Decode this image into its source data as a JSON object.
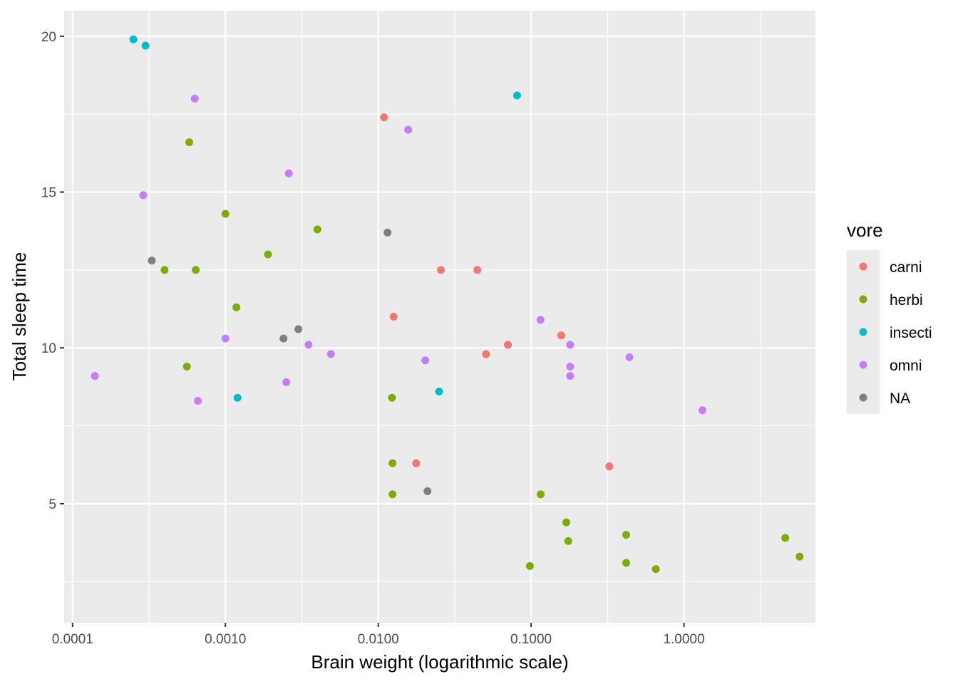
{
  "chart_data": {
    "type": "scatter",
    "title": "",
    "xlabel": "Brain weight (logarithmic scale)",
    "ylabel": "Total sleep time",
    "x_scale": "log10",
    "xlim": [
      8.81e-05,
      7.25
    ],
    "ylim": [
      1.18,
      20.82
    ],
    "x_ticks": [
      0.0001,
      0.001,
      0.01,
      0.1,
      1
    ],
    "x_tick_labels": [
      "0.0001",
      "0.0010",
      "0.0100",
      "0.1000",
      "1.0000"
    ],
    "y_ticks": [
      5,
      10,
      15,
      20
    ],
    "y_tick_labels": [
      "5",
      "10",
      "15",
      "20"
    ],
    "grid": true,
    "legend": {
      "title": "vore",
      "position": "right"
    },
    "series": [
      {
        "name": "carni",
        "color": "#F8766D",
        "points": [
          [
            0.0109,
            17.4
          ],
          [
            0.0257,
            12.5
          ],
          [
            0.0445,
            12.5
          ],
          [
            0.0126,
            11.0
          ],
          [
            0.1575,
            10.4
          ],
          [
            0.0705,
            10.1
          ],
          [
            0.0507,
            9.8
          ],
          [
            0.0177,
            6.3
          ],
          [
            0.325,
            6.2
          ]
        ]
      },
      {
        "name": "herbi",
        "color": "#7CAE00",
        "points": [
          [
            0.00058,
            16.6
          ],
          [
            0.001,
            14.3
          ],
          [
            0.004,
            13.8
          ],
          [
            0.0019,
            13.0
          ],
          [
            0.0004,
            12.5
          ],
          [
            0.00064,
            12.5
          ],
          [
            0.00118,
            11.3
          ],
          [
            0.00056,
            9.4
          ],
          [
            0.0123,
            8.4
          ],
          [
            0.0124,
            6.3
          ],
          [
            0.0124,
            5.3
          ],
          [
            0.1155,
            5.3
          ],
          [
            0.17,
            4.4
          ],
          [
            0.419,
            4.0
          ],
          [
            4.603,
            3.9
          ],
          [
            0.175,
            3.8
          ],
          [
            5.712,
            3.3
          ],
          [
            0.419,
            3.1
          ],
          [
            0.0982,
            3.0
          ],
          [
            0.655,
            2.9
          ]
        ]
      },
      {
        "name": "insecti",
        "color": "#00BFC4",
        "points": [
          [
            0.00025,
            19.9
          ],
          [
            0.0003,
            19.7
          ],
          [
            0.081,
            18.1
          ],
          [
            0.0012,
            8.4
          ],
          [
            0.025,
            8.6
          ]
        ]
      },
      {
        "name": "omni",
        "color": "#C77CFF",
        "points": [
          [
            0.00063,
            18.0
          ],
          [
            0.0157,
            17.0
          ],
          [
            0.0026,
            15.6
          ],
          [
            0.00029,
            14.9
          ],
          [
            0.1153,
            10.9
          ],
          [
            0.001,
            10.3
          ],
          [
            0.0035,
            10.1
          ],
          [
            0.18,
            10.1
          ],
          [
            0.0049,
            9.8
          ],
          [
            0.44,
            9.7
          ],
          [
            0.0203,
            9.6
          ],
          [
            0.18,
            9.4
          ],
          [
            0.00014,
            9.1
          ],
          [
            0.18,
            9.1
          ],
          [
            0.0025,
            8.9
          ],
          [
            0.00066,
            8.3
          ],
          [
            1.32,
            8.0
          ]
        ]
      },
      {
        "name": "NA",
        "color": "#7F7F7F",
        "points": [
          [
            0.0115,
            13.7
          ],
          [
            0.00033,
            12.8
          ],
          [
            0.003,
            10.6
          ],
          [
            0.0024,
            10.3
          ],
          [
            0.021,
            5.4
          ]
        ]
      }
    ]
  }
}
